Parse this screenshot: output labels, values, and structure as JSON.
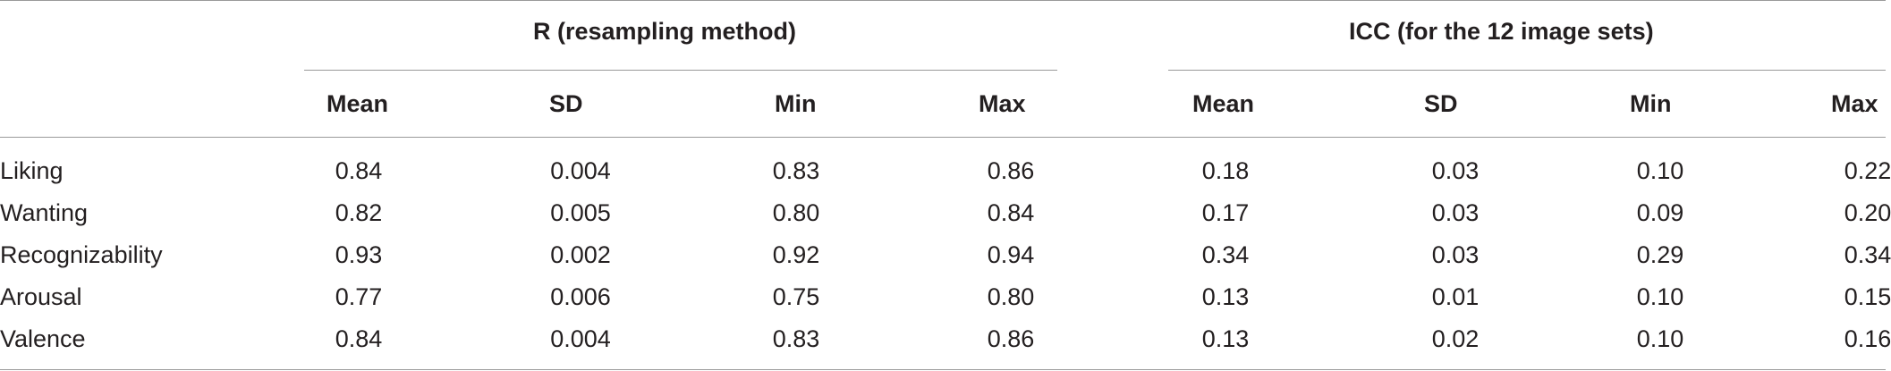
{
  "table": {
    "groups": [
      {
        "title": "R (resampling method)"
      },
      {
        "title": "ICC (for the 12 image sets)"
      }
    ],
    "columns": [
      "Mean",
      "SD",
      "Min",
      "Max",
      "Mean",
      "SD",
      "Min",
      "Max"
    ],
    "rows": [
      {
        "label": "Liking",
        "values": [
          "0.84",
          "0.004",
          "0.83",
          "0.86",
          "0.18",
          "0.03",
          "0.10",
          "0.22"
        ]
      },
      {
        "label": "Wanting",
        "values": [
          "0.82",
          "0.005",
          "0.80",
          "0.84",
          "0.17",
          "0.03",
          "0.09",
          "0.20"
        ]
      },
      {
        "label": "Recognizability",
        "values": [
          "0.93",
          "0.002",
          "0.92",
          "0.94",
          "0.34",
          "0.03",
          "0.29",
          "0.34"
        ]
      },
      {
        "label": "Arousal",
        "values": [
          "0.77",
          "0.006",
          "0.75",
          "0.80",
          "0.13",
          "0.01",
          "0.10",
          "0.15"
        ]
      },
      {
        "label": "Valence",
        "values": [
          "0.84",
          "0.004",
          "0.83",
          "0.86",
          "0.13",
          "0.02",
          "0.10",
          "0.16"
        ]
      }
    ]
  }
}
